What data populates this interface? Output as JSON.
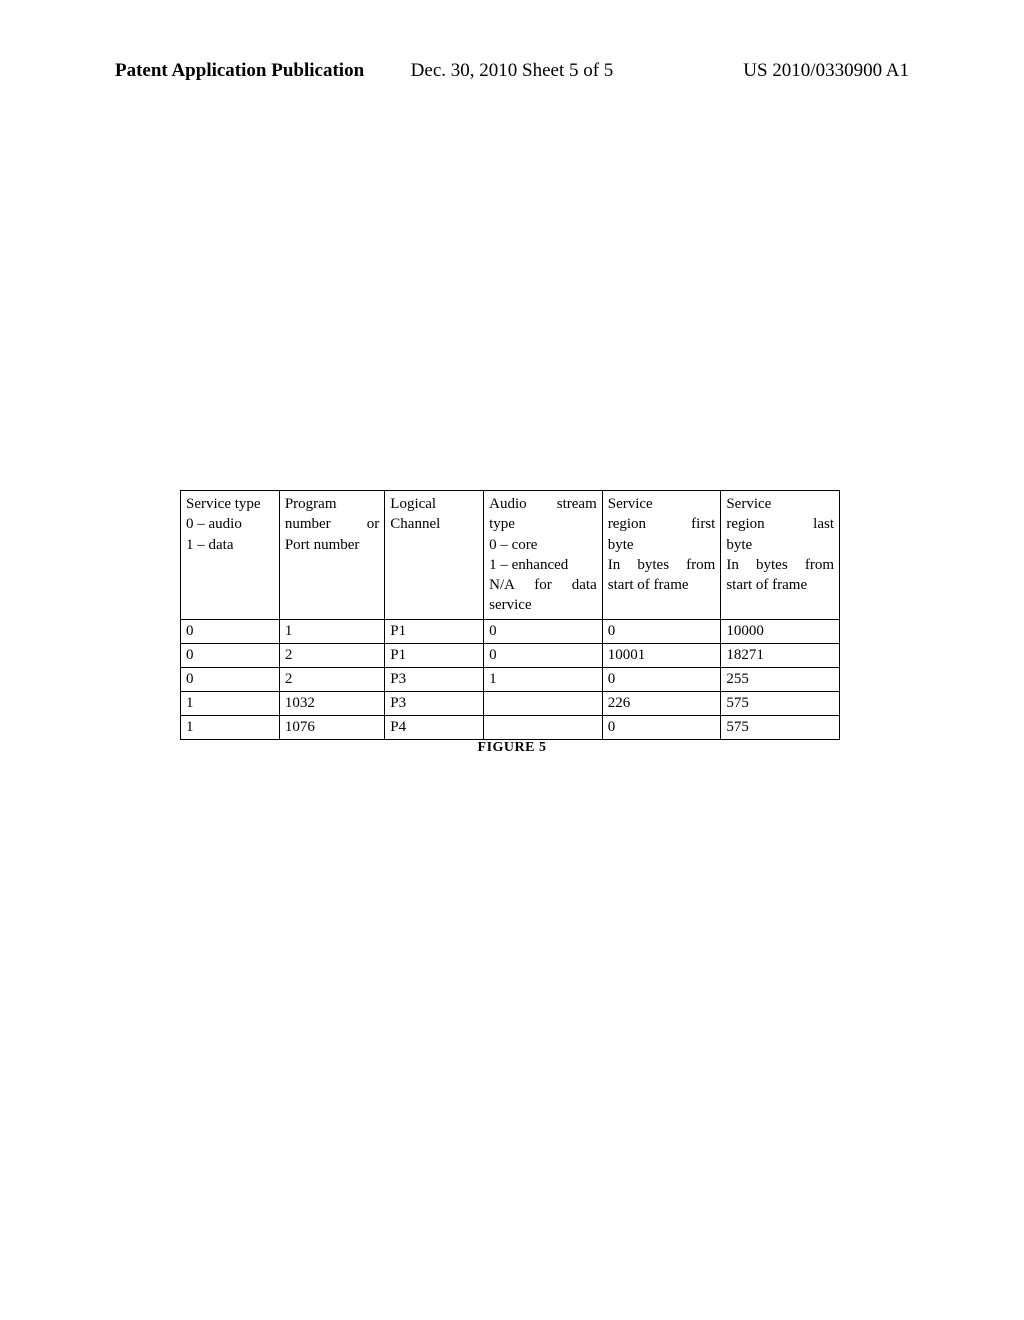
{
  "header": {
    "left": "Patent Application Publication",
    "center": "Dec. 30, 2010  Sheet 5 of 5",
    "right": "US 2010/0330900 A1"
  },
  "table": {
    "type": "table",
    "columns": [
      "Service type\n0 – audio\n1 – data",
      "Program number or Port number",
      "Logical Channel",
      "Audio stream type\n0 – core\n1 – enhanced\nN/A for data service",
      "Service region first byte\nIn bytes from start of frame",
      "Service region last byte\nIn bytes from start of frame"
    ],
    "column_widths_pct": [
      15,
      16,
      15,
      18,
      18,
      18
    ],
    "header_fontsize": 15,
    "cell_fontsize": 15,
    "border_color": "#000000",
    "background_color": "#ffffff",
    "text_color": "#000000",
    "rows": [
      [
        "0",
        "1",
        "P1",
        "0",
        "0",
        "10000"
      ],
      [
        "0",
        "2",
        "P1",
        "0",
        "10001",
        "18271"
      ],
      [
        "0",
        "2",
        "P3",
        "1",
        "0",
        "255"
      ],
      [
        "1",
        "1032",
        "P3",
        "",
        "226",
        "575"
      ],
      [
        "1",
        "1076",
        "P4",
        "",
        "0",
        "575"
      ]
    ]
  },
  "figure_label": "FIGURE 5"
}
